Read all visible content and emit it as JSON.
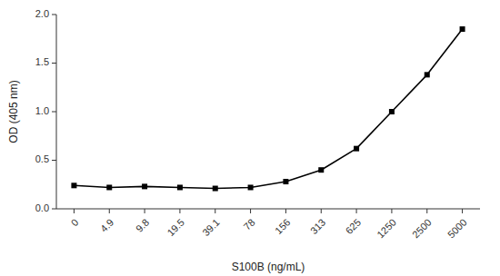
{
  "chart_data": {
    "type": "line",
    "xlabel": "S100B (ng/mL)",
    "ylabel": "OD (405 nm)",
    "categories": [
      "0",
      "4.9",
      "9.8",
      "19.5",
      "39.1",
      "78",
      "156",
      "313",
      "625",
      "1250",
      "2500",
      "5000"
    ],
    "values": [
      0.24,
      0.22,
      0.23,
      0.22,
      0.21,
      0.22,
      0.28,
      0.4,
      0.62,
      1.0,
      1.38,
      1.85
    ],
    "ylim": [
      0.0,
      2.0
    ],
    "yticks": [
      {
        "value": 0.0,
        "label": "0.0"
      },
      0.5,
      {
        "value": 1.0,
        "label": "1.0"
      },
      1.5,
      {
        "value": 2.0,
        "label": "2.0"
      }
    ],
    "color": "#000000",
    "marker": "square",
    "grid": false
  }
}
